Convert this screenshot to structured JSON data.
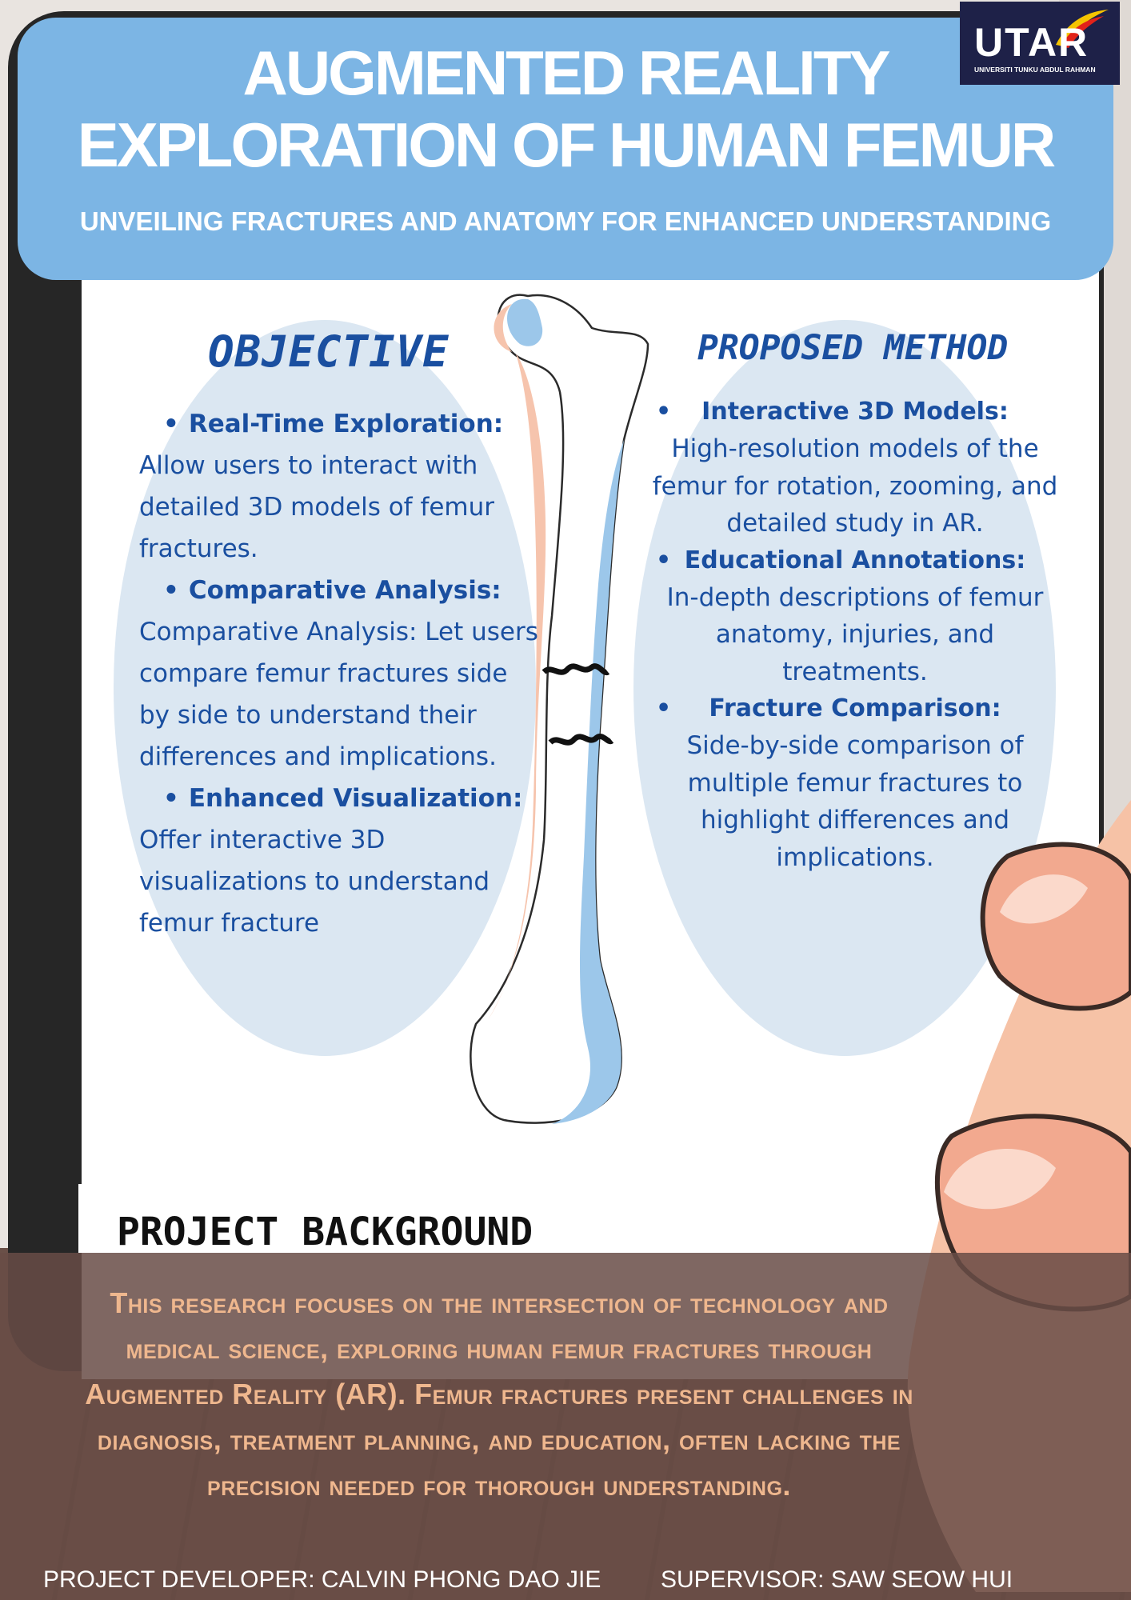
{
  "header": {
    "title_line1": "AUGMENTED REALITY",
    "title_line2": "EXPLORATION OF HUMAN FEMUR",
    "subtitle": "UNVEILING FRACTURES AND ANATOMY FOR ENHANCED UNDERSTANDING"
  },
  "logo": {
    "text": "UTAR",
    "subtext": "UNIVERSITI TUNKU ABDUL RAHMAN"
  },
  "objective": {
    "title": "OBJECTIVE",
    "items": [
      {
        "heading": "Real-Time Exploration:",
        "body": "Allow users to interact with detailed 3D models of femur fractures."
      },
      {
        "heading": "Comparative Analysis:",
        "body": "Comparative Analysis: Let users compare femur fractures side by side to understand their differences and implications."
      },
      {
        "heading": "Enhanced Visualization:",
        "body": "Offer interactive 3D visualizations to understand femur fracture"
      }
    ]
  },
  "method": {
    "title": "PROPOSED METHOD",
    "items": [
      {
        "heading": "Interactive 3D Models:",
        "body": "High-resolution models of the femur for rotation, zooming, and detailed study in AR."
      },
      {
        "heading": "Educational Annotations:",
        "body": "In-depth descriptions of femur anatomy, injuries, and treatments."
      },
      {
        "heading": "Fracture Comparison:",
        "body": "Side-by-side comparison of multiple femur fractures to highlight differences and implications."
      }
    ]
  },
  "background": {
    "title": "PROJECT BACKGROUND",
    "text": "This research focuses on the intersection of technology and medical science, exploring human femur fractures through Augmented Reality (AR). Femur fractures present challenges in diagnosis, treatment planning, and education, often lacking the precision needed for thorough understanding."
  },
  "footer": {
    "developer": "PROJECT DEVELOPER: CALVIN PHONG DAO JIE",
    "supervisor": "SUPERVISOR: SAW SEOW HUI"
  },
  "colors": {
    "banner": "#7cb5e4",
    "heading_blue": "#1a4fa0",
    "oval": "#dbe7f2",
    "background_text": "#efb78e"
  }
}
